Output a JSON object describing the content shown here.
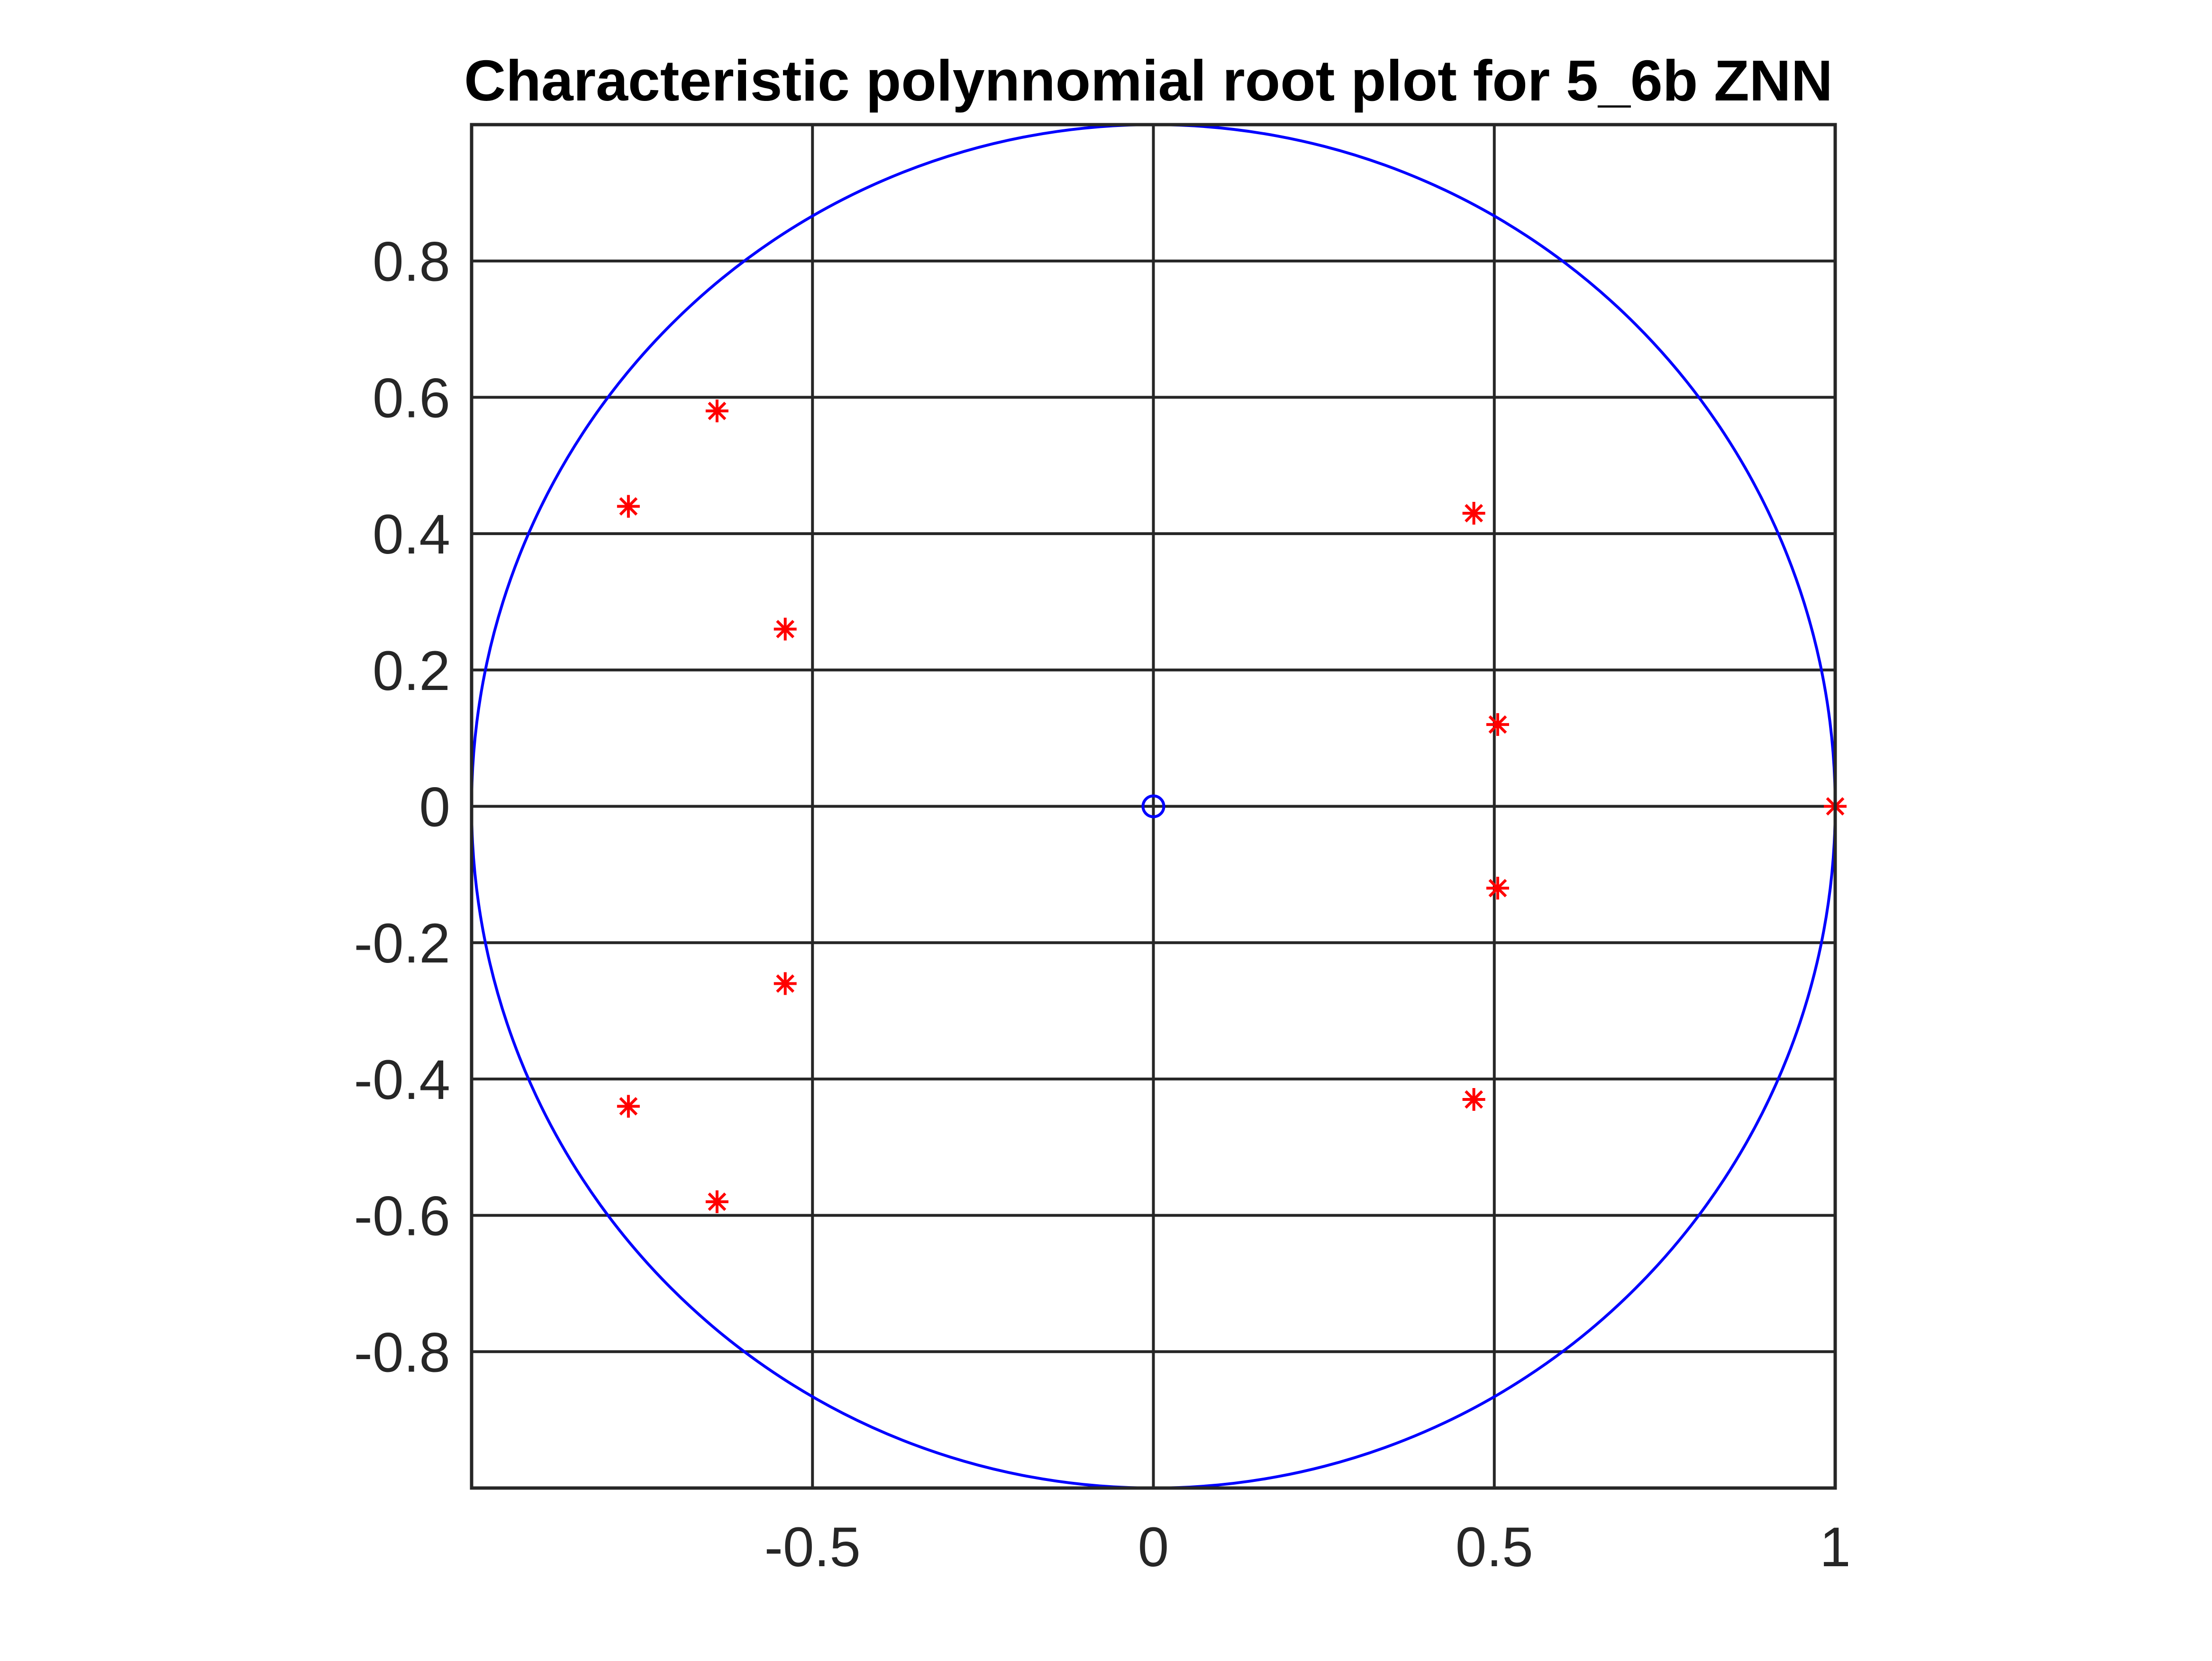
{
  "chart_data": {
    "type": "scatter",
    "title": "Characteristic polynnomial root plot for 5_6b ZNN",
    "xlabel": "",
    "ylabel": "",
    "xlim": [
      -1,
      1
    ],
    "ylim": [
      -1,
      1
    ],
    "grid": true,
    "legend": "none",
    "x_ticks": [
      -0.5,
      0,
      0.5,
      1
    ],
    "x_tick_labels": [
      "-0.5",
      "0",
      "0.5",
      "1"
    ],
    "y_ticks": [
      0.8,
      0.6,
      0.4,
      0.2,
      0,
      -0.2,
      -0.4,
      -0.6,
      -0.8
    ],
    "y_tick_labels": [
      "0.8",
      "0.6",
      "0.4",
      "0.2",
      "0",
      "-0.2",
      "-0.4",
      "-0.6",
      "-0.8"
    ],
    "unit_circle": {
      "center": [
        0,
        0
      ],
      "radius": 1,
      "color": "#0000ff"
    },
    "zero_marker": {
      "x": 0,
      "y": 0,
      "marker": "o",
      "color": "#0000ff"
    },
    "roots": {
      "marker": "*",
      "color": "#ff0000",
      "points": [
        {
          "x": -0.64,
          "y": 0.58
        },
        {
          "x": -0.77,
          "y": 0.44
        },
        {
          "x": -0.54,
          "y": 0.26
        },
        {
          "x": -0.54,
          "y": -0.26
        },
        {
          "x": -0.77,
          "y": -0.44
        },
        {
          "x": -0.64,
          "y": -0.58
        },
        {
          "x": 0.47,
          "y": 0.43
        },
        {
          "x": 0.505,
          "y": 0.12
        },
        {
          "x": 1.0,
          "y": 0.0
        },
        {
          "x": 0.505,
          "y": -0.12
        },
        {
          "x": 0.47,
          "y": -0.43
        }
      ]
    },
    "axis_color": "#262626",
    "grid_color": "#262626"
  }
}
